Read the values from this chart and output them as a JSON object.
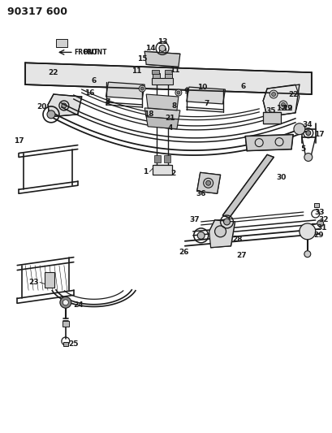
{
  "title": "90317 600",
  "bg_color": "#ffffff",
  "line_color": "#1a1a1a",
  "title_fontsize": 9,
  "label_fontsize": 6.5,
  "fig_width": 4.1,
  "fig_height": 5.33,
  "dpi": 100
}
